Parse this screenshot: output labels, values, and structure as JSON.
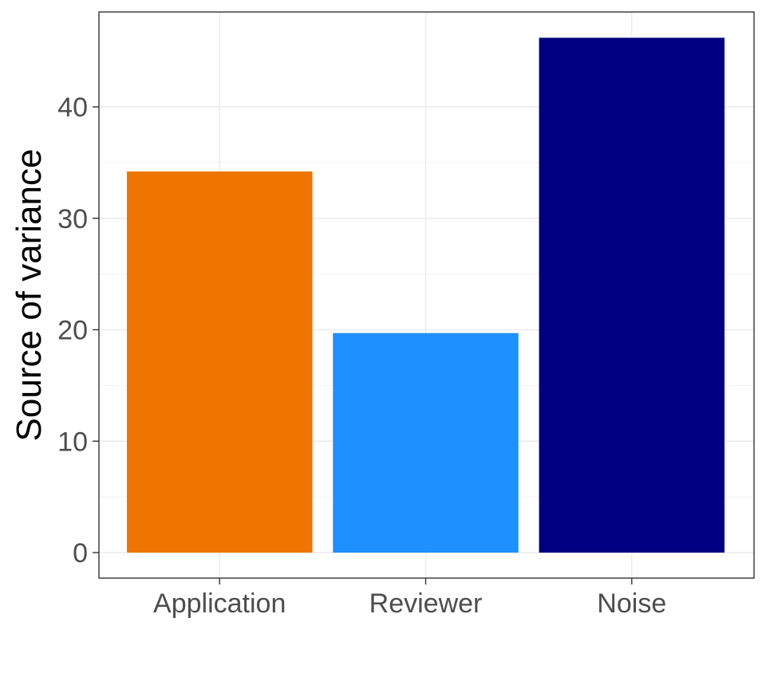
{
  "chart_data": {
    "type": "bar",
    "title": "",
    "xlabel": "",
    "ylabel": "Source of variance",
    "categories": [
      "Application",
      "Reviewer",
      "Noise"
    ],
    "values": [
      34.2,
      19.7,
      46.2
    ],
    "colors": [
      "#EE7600",
      "#1E90FF",
      "#000080"
    ],
    "ylim": [
      -2.3,
      48.5
    ],
    "yticks": [
      0,
      10,
      20,
      30,
      40
    ],
    "grid": true,
    "legend": "none"
  }
}
